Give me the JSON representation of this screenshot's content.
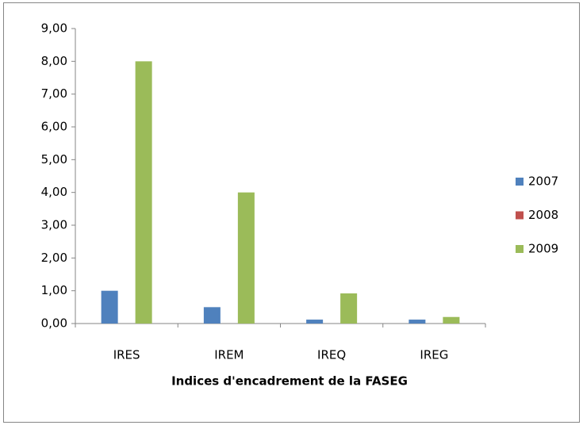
{
  "chart_data": {
    "type": "bar",
    "xlabel": "Indices d'encadrement de la FASEG",
    "categories": [
      "IRES",
      "IREM",
      "IREQ",
      "IREG"
    ],
    "series": [
      {
        "name": "2007",
        "color": "#4f81bd",
        "values": [
          1.0,
          0.5,
          0.12,
          0.12
        ]
      },
      {
        "name": "2008",
        "color": "#c0504d",
        "values": [
          0,
          0,
          0,
          0
        ]
      },
      {
        "name": "2009",
        "color": "#9bbb59",
        "values": [
          8.0,
          4.0,
          0.92,
          0.2
        ]
      }
    ],
    "ylim": [
      0,
      9
    ],
    "yticks": [
      {
        "value": 0,
        "label": "0,00"
      },
      {
        "value": 1,
        "label": "1,00"
      },
      {
        "value": 2,
        "label": "2,00"
      },
      {
        "value": 3,
        "label": "3,00"
      },
      {
        "value": 4,
        "label": "4,00"
      },
      {
        "value": 5,
        "label": "5,00"
      },
      {
        "value": 6,
        "label": "6,00"
      },
      {
        "value": 7,
        "label": "7,00"
      },
      {
        "value": 8,
        "label": "8,00"
      },
      {
        "value": 9,
        "label": "9,00"
      }
    ],
    "grid": false,
    "legend": "right"
  }
}
